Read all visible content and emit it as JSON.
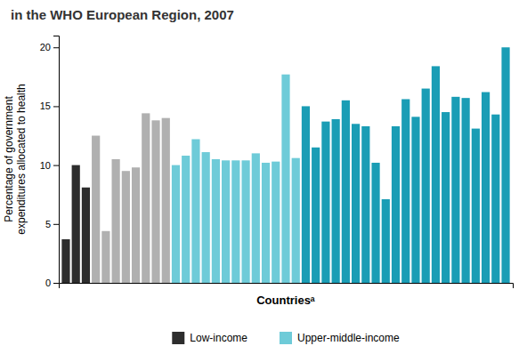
{
  "chart_data": {
    "type": "bar",
    "title": "in the WHO European Region, 2007",
    "xlabel": "Countriesᵃ",
    "ylabel": "Percentage of government\nexpenditures allocated to health",
    "categories": [
      null,
      null,
      null,
      null,
      null,
      null,
      null,
      null,
      null,
      null,
      null,
      null,
      null,
      null,
      null,
      null,
      null,
      null,
      null,
      null,
      null,
      null,
      null,
      null,
      null,
      null,
      null,
      null,
      null,
      null,
      null,
      null,
      null,
      null,
      null,
      null,
      null,
      null,
      null,
      null,
      null,
      null,
      null,
      null,
      null
    ],
    "values": [
      3.7,
      10.0,
      8.1,
      12.5,
      4.4,
      10.5,
      9.5,
      9.8,
      14.4,
      13.8,
      14.0,
      10.0,
      10.8,
      12.2,
      11.1,
      10.5,
      10.4,
      10.4,
      10.4,
      11.0,
      10.2,
      10.3,
      17.7,
      10.6,
      15.0,
      11.5,
      13.7,
      13.9,
      15.5,
      13.5,
      13.3,
      10.2,
      7.1,
      13.3,
      15.6,
      14.1,
      16.5,
      18.4,
      14.5,
      15.8,
      15.7,
      13.1,
      16.2,
      14.3,
      20.0
    ],
    "colors": [
      "#2d2d2d",
      "#2d2d2d",
      "#2d2d2d",
      "#b0b0b0",
      "#b0b0b0",
      "#b0b0b0",
      "#b0b0b0",
      "#b0b0b0",
      "#b0b0b0",
      "#b0b0b0",
      "#b0b0b0",
      "#6ecbd8",
      "#6ecbd8",
      "#6ecbd8",
      "#6ecbd8",
      "#6ecbd8",
      "#6ecbd8",
      "#6ecbd8",
      "#6ecbd8",
      "#6ecbd8",
      "#6ecbd8",
      "#6ecbd8",
      "#6ecbd8",
      "#6ecbd8",
      "#1a9db5",
      "#1a9db5",
      "#1a9db5",
      "#1a9db5",
      "#1a9db5",
      "#1a9db5",
      "#1a9db5",
      "#1a9db5",
      "#1a9db5",
      "#1a9db5",
      "#1a9db5",
      "#1a9db5",
      "#1a9db5",
      "#1a9db5",
      "#1a9db5",
      "#1a9db5",
      "#1a9db5",
      "#1a9db5",
      "#1a9db5",
      "#1a9db5",
      "#1a9db5"
    ],
    "legend_entries": [
      {
        "name": "Low-income",
        "color": "#2d2d2d"
      },
      {
        "name": "Upper-middle-income",
        "color": "#6ecbd8"
      }
    ],
    "legend": "bottom",
    "ylim": [
      0,
      21
    ],
    "yticks": [
      0,
      5,
      10,
      15,
      20
    ],
    "tick_labels": "y",
    "grid": false
  }
}
